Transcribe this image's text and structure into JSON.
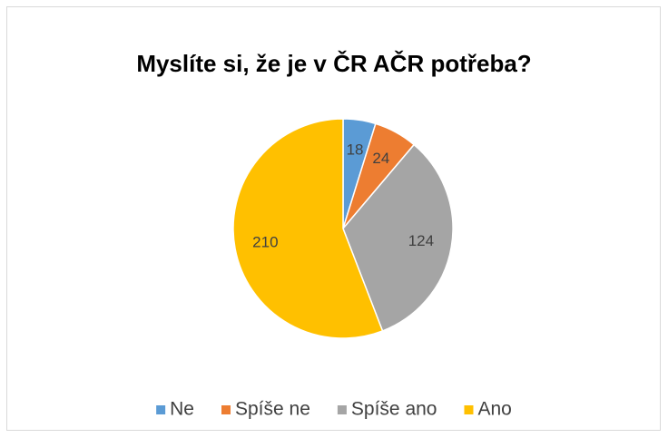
{
  "chart_data": {
    "type": "pie",
    "title": "Myslíte si, že je v ČR AČR potřeba?",
    "categories": [
      "Ne",
      "Spíše ne",
      "Spíše ano",
      "Ano"
    ],
    "values": [
      18,
      24,
      124,
      210
    ],
    "colors": [
      "#5b9bd5",
      "#ed7d31",
      "#a5a5a5",
      "#ffc000"
    ],
    "legend": "bottom"
  }
}
